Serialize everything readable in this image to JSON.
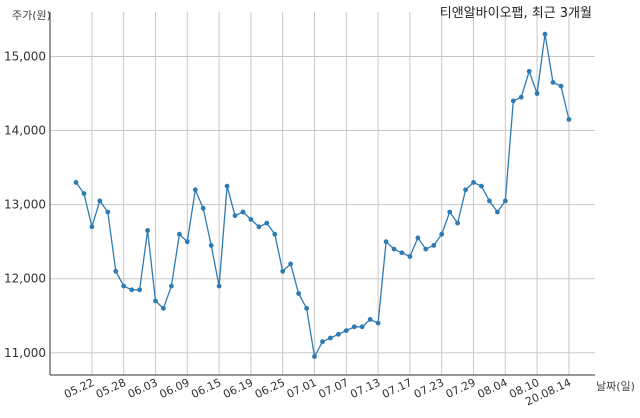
{
  "chart_data": {
    "type": "line",
    "title": "티앤알바이오팹, 최근 3개월",
    "xlabel": "날짜(일)",
    "ylabel": "주가(원)",
    "ylim": [
      10700,
      15600
    ],
    "yticks": [
      11000,
      12000,
      13000,
      14000,
      15000
    ],
    "ytick_labels": [
      "11,000",
      "12,000",
      "13,000",
      "14,000",
      "15,000"
    ],
    "xticks": [
      "05.22",
      "05.28",
      "06.03",
      "06.09",
      "06.15",
      "06.19",
      "06.25",
      "07.01",
      "07.07",
      "07.13",
      "07.17",
      "07.23",
      "07.29",
      "08.04",
      "08.10",
      "20.08.14"
    ],
    "grid": "vertical",
    "line_color": "#2e7bb4",
    "series": [
      {
        "values": [
          13300,
          13150,
          12700,
          13050,
          12900,
          12100,
          11900,
          11850,
          11850,
          12650,
          11700,
          11600,
          11900,
          12600,
          12500,
          13200,
          12950,
          12450,
          11900,
          13250,
          12850,
          12900,
          12800,
          12700,
          12750,
          12600,
          12100,
          12200,
          11800,
          11600,
          10950,
          11150,
          11200,
          11250,
          11300,
          11350,
          11350,
          11450,
          11400,
          12500,
          12400,
          12350,
          12300,
          12550,
          12400,
          12450,
          12600,
          12900,
          12750,
          13200,
          13300,
          13250,
          13050,
          12900,
          13050,
          14400,
          14450,
          14800,
          14500,
          15300,
          14650,
          14600,
          14150
        ]
      }
    ]
  }
}
